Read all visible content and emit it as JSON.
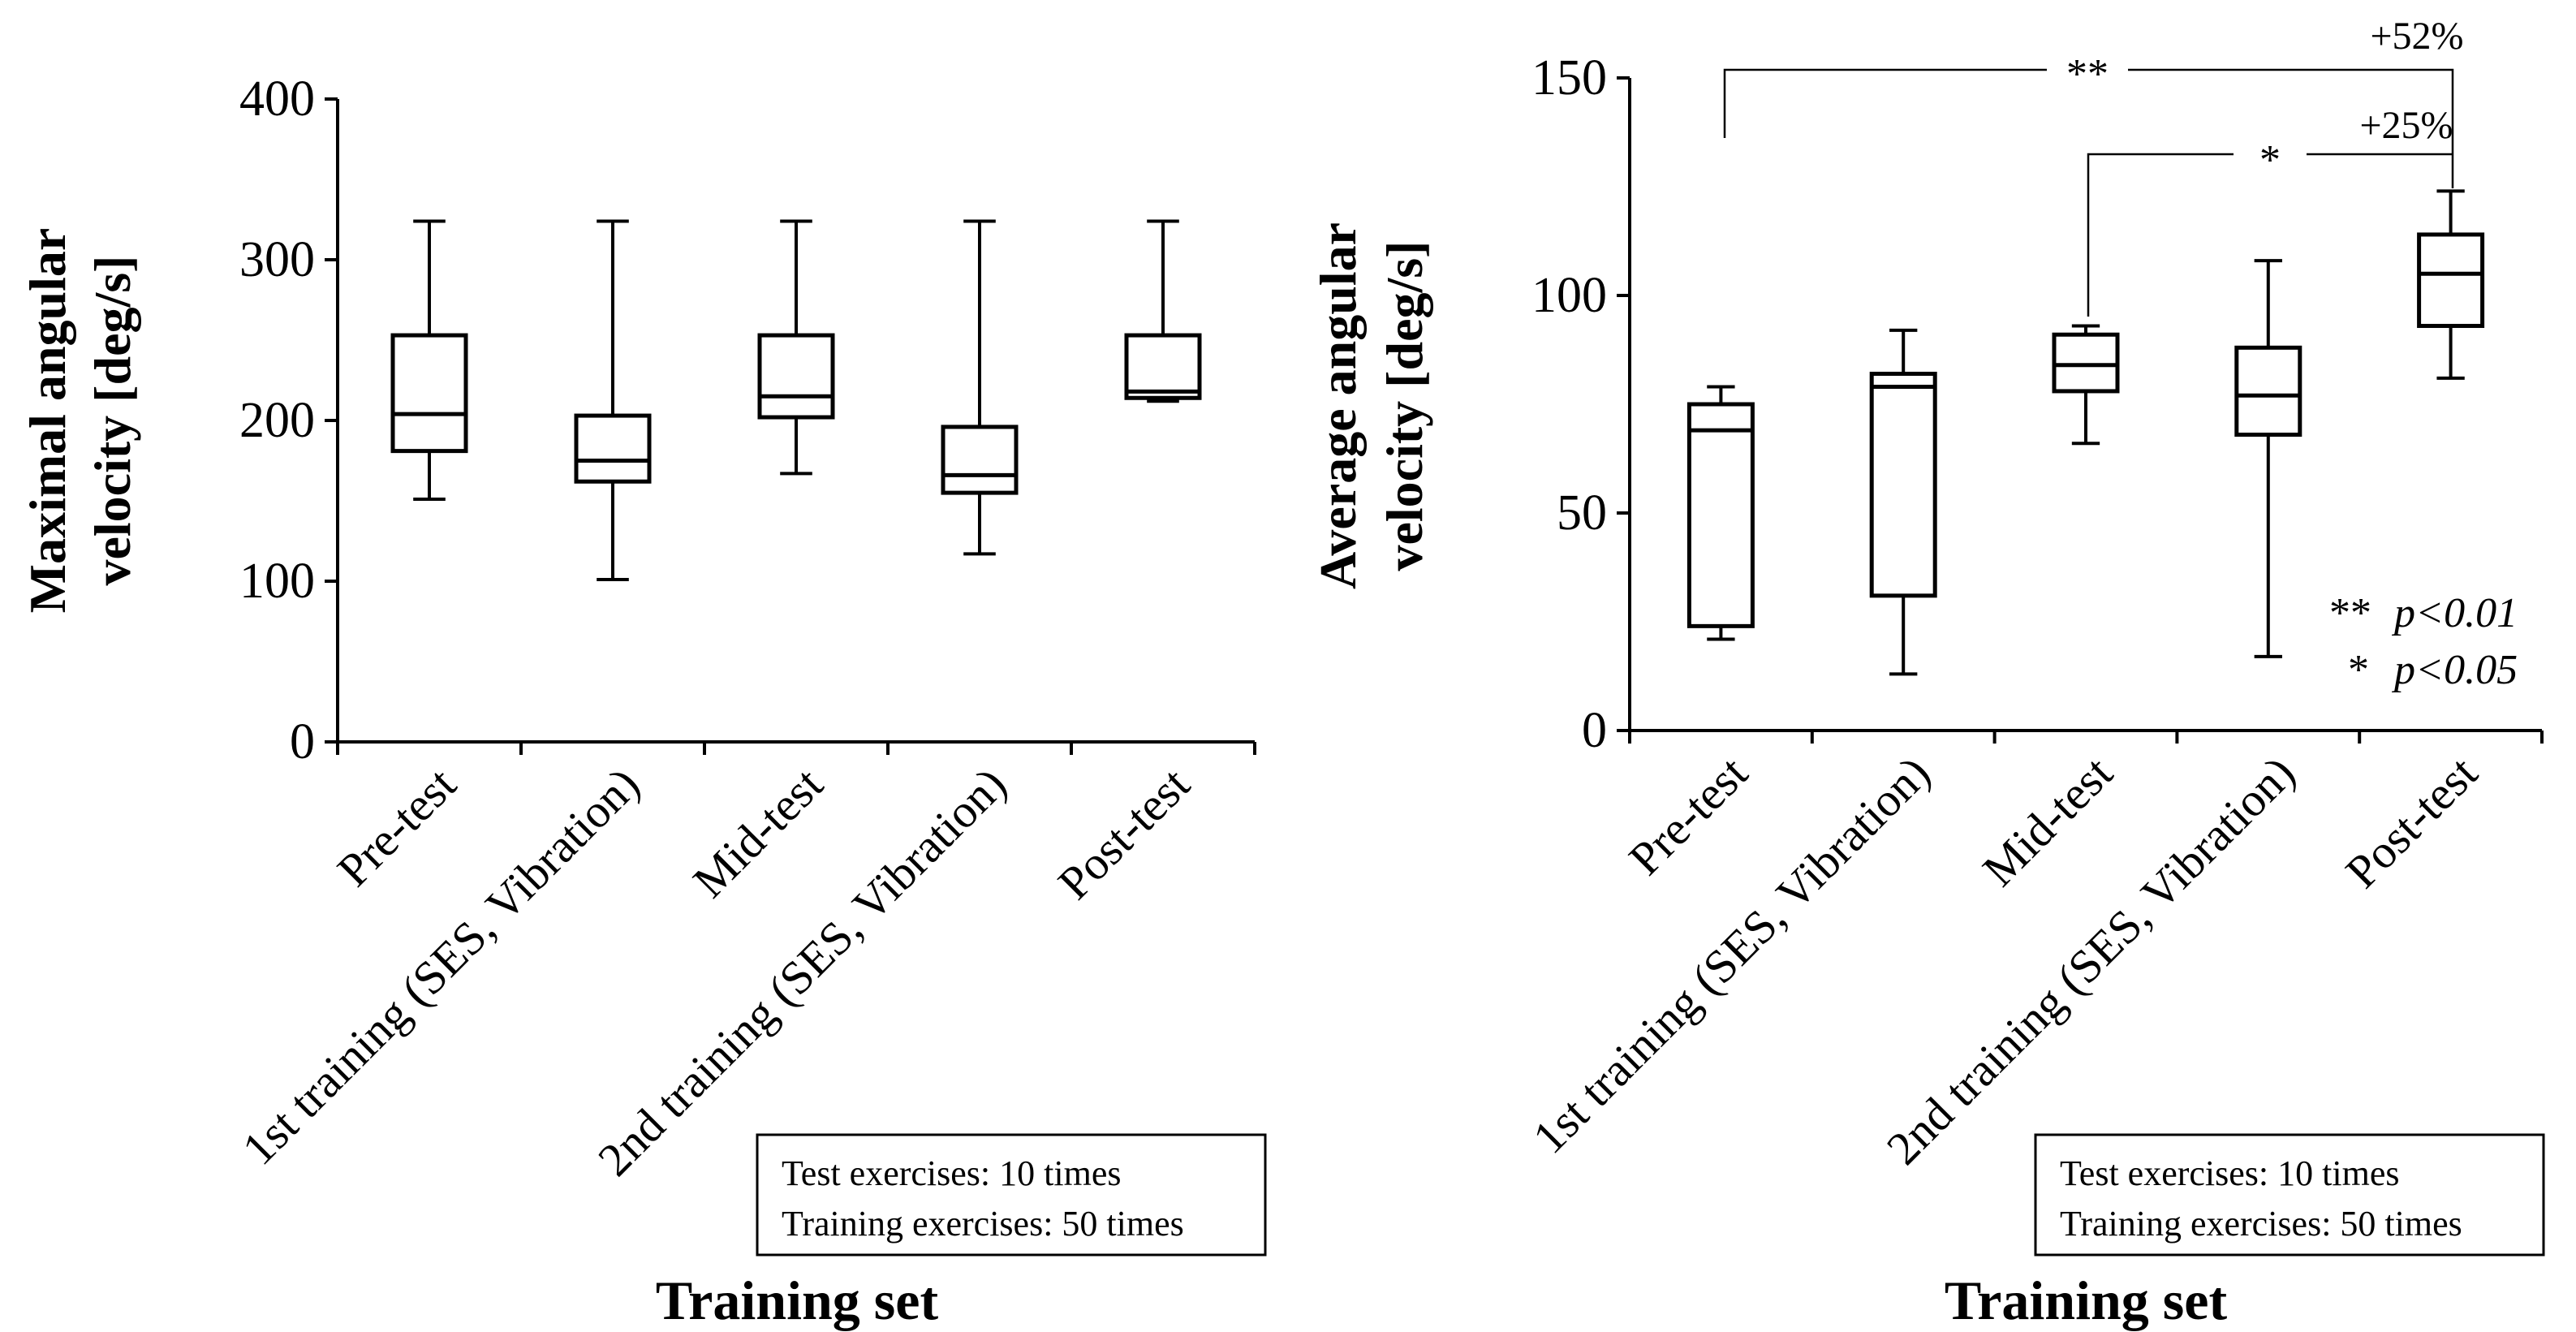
{
  "chart_data": [
    {
      "type": "box",
      "ylabel_line1": "Maximal angular",
      "ylabel_line2": "velocity [deg/s]",
      "xlabel": "Training set",
      "ylim": [
        0,
        400
      ],
      "yticks": [
        0,
        100,
        200,
        300,
        400
      ],
      "categories": [
        "Pre-test",
        "1st training (SES, Vibration)",
        "Mid-test",
        "2nd training (SES, Vibration)",
        "Post-test"
      ],
      "boxes": [
        {
          "min": 151,
          "q1": 181,
          "median": 204,
          "q3": 253,
          "max": 324
        },
        {
          "min": 101,
          "q1": 162,
          "median": 175,
          "q3": 203,
          "max": 324
        },
        {
          "min": 167,
          "q1": 202,
          "median": 215,
          "q3": 253,
          "max": 324
        },
        {
          "min": 117,
          "q1": 155,
          "median": 166,
          "q3": 196,
          "max": 324
        },
        {
          "min": 212,
          "q1": 214,
          "median": 218,
          "q3": 253,
          "max": 324
        }
      ],
      "note_line1": "Test exercises: 10 times",
      "note_line2": "Training exercises: 50 times"
    },
    {
      "type": "box",
      "ylabel_line1": "Average angular",
      "ylabel_line2": "velocity [deg/s]",
      "xlabel": "Training set",
      "ylim": [
        0,
        150
      ],
      "yticks": [
        0,
        50,
        100,
        150
      ],
      "categories": [
        "Pre-test",
        "1st training (SES, Vibration)",
        "Mid-test",
        "2nd training (SES, Vibration)",
        "Post-test"
      ],
      "boxes": [
        {
          "min": 21,
          "q1": 24,
          "median": 69,
          "q3": 75,
          "max": 79
        },
        {
          "min": 13,
          "q1": 31,
          "median": 79,
          "q3": 82,
          "max": 92
        },
        {
          "min": 66,
          "q1": 78,
          "median": 84,
          "q3": 91,
          "max": 93
        },
        {
          "min": 17,
          "q1": 68,
          "median": 77,
          "q3": 88,
          "max": 108
        },
        {
          "min": 81,
          "q1": 93,
          "median": 105,
          "q3": 114,
          "max": 124
        }
      ],
      "annotations": [
        {
          "from": 0,
          "to": 4,
          "label": "**",
          "change": "+52%"
        },
        {
          "from": 2,
          "to": 4,
          "label": "*",
          "change": "+25%"
        }
      ],
      "legend_line1_symbol": "**",
      "legend_line1_text": "p<0.01",
      "legend_line2_symbol": "*",
      "legend_line2_text": "p<0.05",
      "note_line1": "Test exercises: 10 times",
      "note_line2": "Training exercises: 50 times"
    }
  ]
}
